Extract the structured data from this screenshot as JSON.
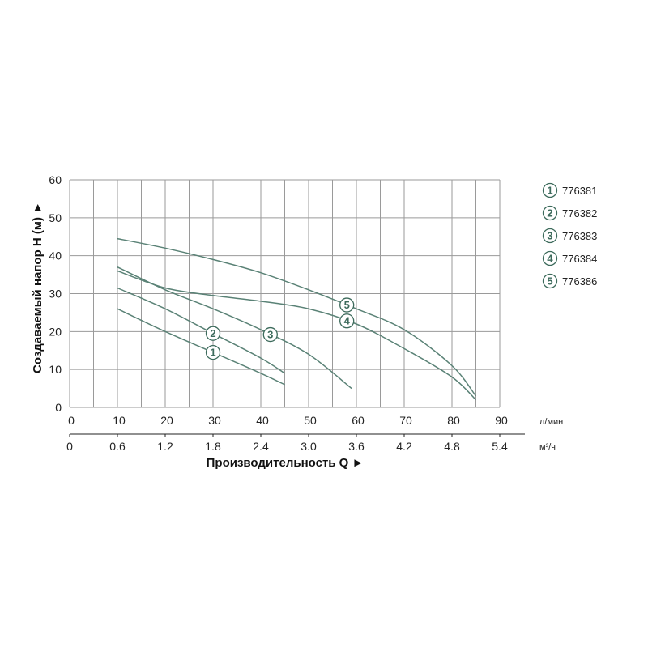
{
  "chart_data": {
    "type": "line",
    "xlabel": "Производительность Q ►",
    "ylabel": "Создаваемый напор H (м) ►",
    "x_unit": "л/мин",
    "x2_unit": "м³/ч",
    "x_ticks": [
      "0",
      "10",
      "20",
      "30",
      "40",
      "50",
      "60",
      "70",
      "80",
      "90"
    ],
    "x2_ticks": [
      "0",
      "0.6",
      "1.2",
      "1.8",
      "2.4",
      "3.0",
      "3.6",
      "4.2",
      "4.8",
      "5.4"
    ],
    "y_ticks": [
      "0",
      "10",
      "20",
      "30",
      "40",
      "50",
      "60"
    ],
    "xlim": [
      0,
      90
    ],
    "ylim": [
      0,
      60
    ],
    "grid": true,
    "colors": {
      "curve": "#5a8276",
      "badge": "#3d6b5c",
      "grid": "#9a9a9a"
    },
    "series": [
      {
        "name": "776381",
        "label": "1",
        "x": [
          10,
          20,
          30,
          40,
          45
        ],
        "y": [
          26,
          20,
          14.5,
          9,
          6
        ]
      },
      {
        "name": "776382",
        "label": "2",
        "x": [
          10,
          20,
          30,
          40,
          45
        ],
        "y": [
          31.5,
          26,
          19.5,
          13,
          9
        ]
      },
      {
        "name": "776383",
        "label": "3",
        "x": [
          10,
          20,
          30,
          40,
          50,
          59
        ],
        "y": [
          37,
          31,
          26,
          20.5,
          14,
          5
        ]
      },
      {
        "name": "776384",
        "label": "4",
        "x": [
          10,
          20,
          30,
          40,
          50,
          60,
          70,
          80,
          85
        ],
        "y": [
          36,
          31.5,
          29.5,
          28,
          26,
          22,
          15.5,
          8,
          2
        ]
      },
      {
        "name": "776386",
        "label": "5",
        "x": [
          10,
          20,
          30,
          40,
          50,
          60,
          70,
          80,
          85
        ],
        "y": [
          44.5,
          42,
          39,
          35.5,
          31,
          26,
          20.5,
          11,
          3
        ]
      }
    ],
    "legend_position": "right"
  }
}
